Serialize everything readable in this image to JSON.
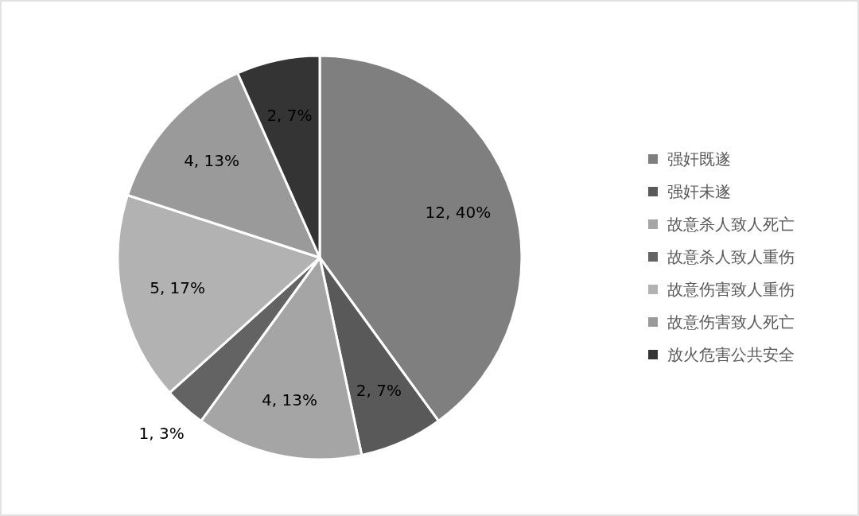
{
  "chart_data": {
    "type": "pie",
    "categories": [
      "强奸既遂",
      "强奸未遂",
      "故意杀人致人死亡",
      "故意杀人致人重伤",
      "故意伤害致人重伤",
      "故意伤害致人死亡",
      "放火危害公共安全"
    ],
    "values": [
      12,
      2,
      4,
      1,
      5,
      4,
      2
    ],
    "colors": [
      "#7f7f7f",
      "#595959",
      "#a5a5a5",
      "#636363",
      "#b2b2b2",
      "#9a9a9a",
      "#343434"
    ],
    "value_labels": [
      "12, 40%",
      "2, 7%",
      "4, 13%",
      "1, 3%",
      "5, 17%",
      "4, 13%",
      "2, 7%"
    ],
    "legend": "right"
  }
}
